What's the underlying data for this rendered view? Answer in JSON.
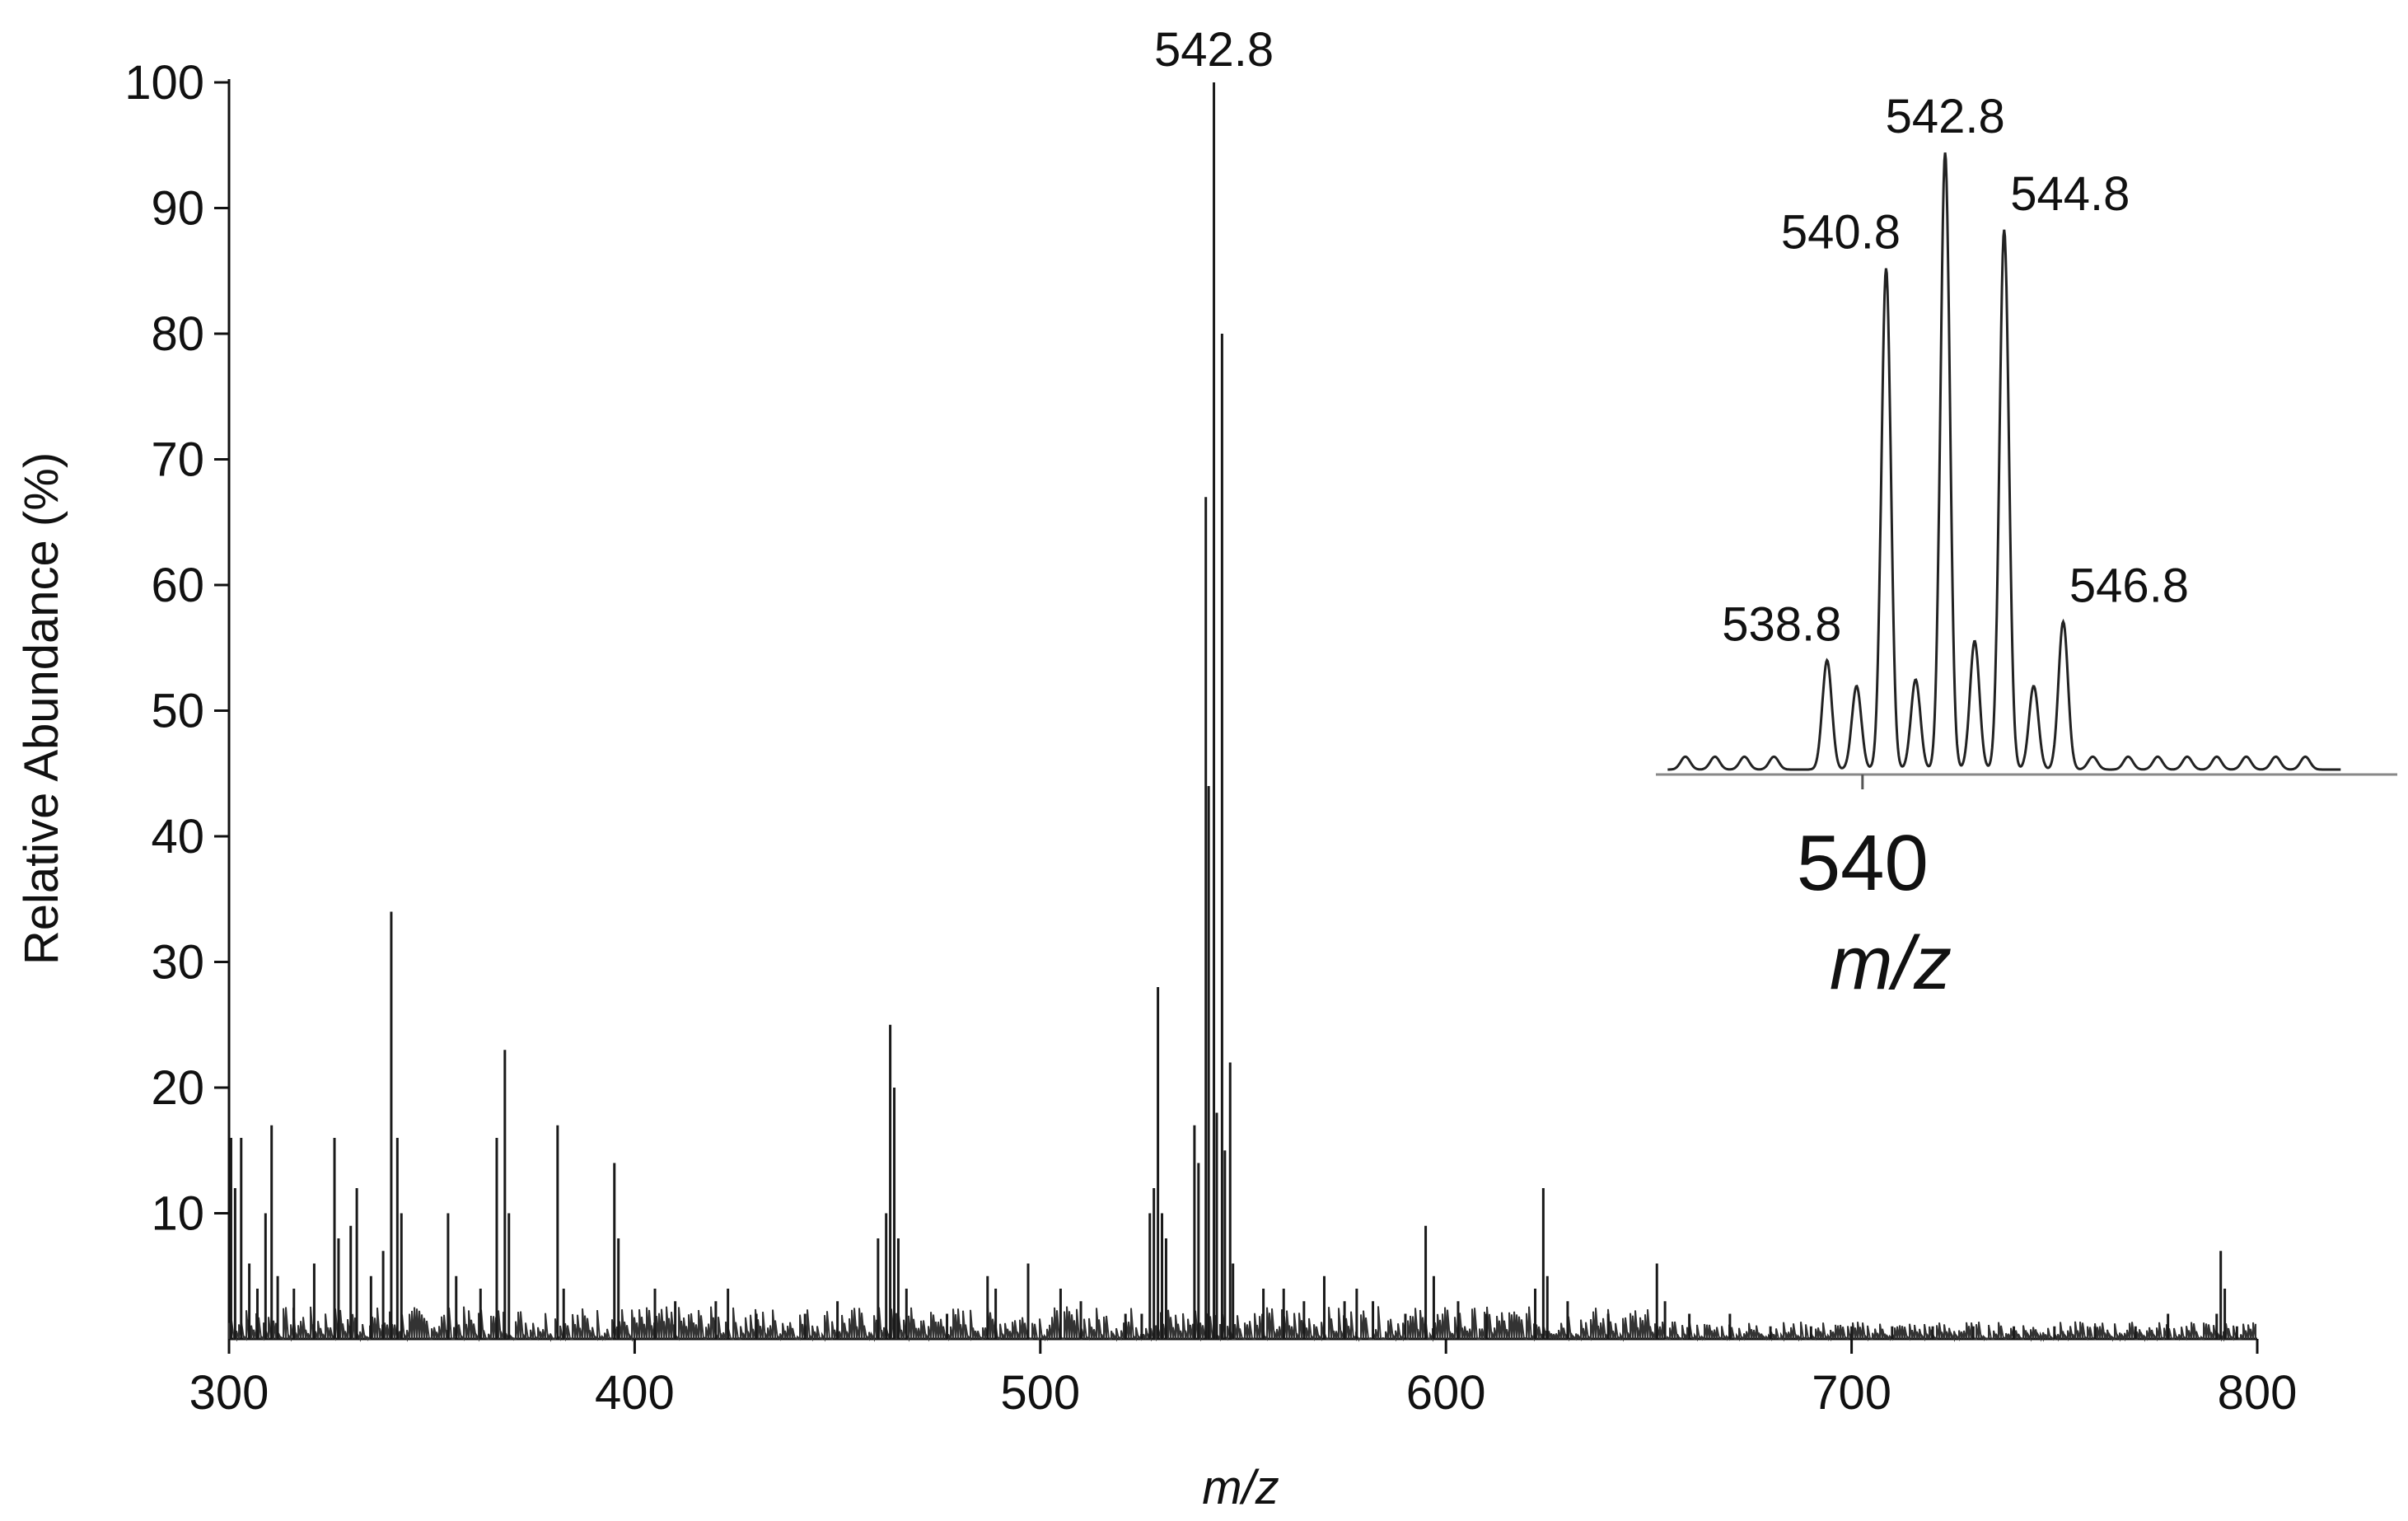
{
  "chart_data": [
    {
      "type": "line",
      "subtype": "mass-spectrum",
      "title": "",
      "xlabel": "m/z",
      "ylabel": "Relative Abundance (%)",
      "xlim": [
        300,
        800
      ],
      "ylim": [
        0,
        100
      ],
      "x_ticks": [
        300,
        400,
        500,
        600,
        700,
        800
      ],
      "y_ticks": [
        10,
        20,
        30,
        40,
        50,
        60,
        70,
        80,
        90,
        100
      ],
      "grid": false,
      "legend": "none",
      "series": [
        {
          "style": "stick",
          "x": [
            300.5,
            301.5,
            303,
            305,
            307,
            309,
            310.5,
            312,
            316,
            321,
            326,
            327,
            330,
            331.5,
            335,
            338,
            340,
            341.5,
            342.5,
            354,
            356,
            362,
            366,
            368,
            369,
            381,
            382.5,
            395,
            396,
            405,
            410,
            420,
            423,
            430,
            442,
            450,
            460,
            462,
            463,
            464,
            465,
            467,
            477,
            487,
            489,
            497,
            505,
            510,
            521,
            525,
            527,
            528,
            529,
            530,
            531,
            538,
            539,
            540.8,
            541.5,
            542.8,
            543.5,
            544.8,
            545.5,
            546.8,
            547.5,
            555,
            560,
            565,
            570,
            575,
            578,
            582,
            590,
            595,
            597,
            603,
            610,
            622,
            624,
            625,
            630,
            640,
            652,
            654,
            660,
            670,
            680,
            690,
            700,
            710,
            720,
            730,
            740,
            750,
            760,
            770,
            778,
            790,
            791,
            792,
            795
          ],
          "y": [
            16,
            12,
            16,
            6,
            4,
            10,
            17,
            5,
            4,
            6,
            16,
            8,
            9,
            12,
            5,
            7,
            34,
            16,
            10,
            10,
            5,
            4,
            16,
            23,
            10,
            17,
            4,
            14,
            8,
            4,
            3,
            3,
            4,
            2,
            2,
            3,
            8,
            10,
            25,
            20,
            8,
            4,
            2,
            5,
            4,
            6,
            4,
            3,
            2,
            2,
            10,
            12,
            28,
            10,
            8,
            17,
            14,
            67,
            44,
            100,
            18,
            80,
            15,
            22,
            6,
            4,
            4,
            3,
            5,
            3,
            4,
            3,
            2,
            9,
            5,
            3,
            2,
            4,
            12,
            5,
            3,
            2,
            6,
            3,
            2,
            2,
            1,
            1,
            1,
            1,
            1,
            1,
            1,
            1,
            1,
            1,
            2,
            2,
            7,
            4,
            1
          ]
        }
      ],
      "annotations": [
        {
          "text": "542.8",
          "x": 542.8,
          "y": 100
        }
      ]
    },
    {
      "type": "line",
      "subtype": "mass-spectrum-inset",
      "title": "",
      "xlabel": "m/z",
      "ylabel": "",
      "xlim": [
        533,
        557
      ],
      "ylim": [
        0,
        100
      ],
      "x_ticks": [
        540
      ],
      "grid": false,
      "legend": "none",
      "series": [
        {
          "style": "profile",
          "x": [
            538.8,
            539.8,
            540.8,
            541.8,
            542.8,
            543.8,
            544.8,
            545.8,
            546.8,
            547.8,
            549.0,
            550.0,
            551.0,
            552.0,
            553.0,
            554.0,
            555.0,
            536.0,
            535.0,
            534.0,
            537.0
          ],
          "y": [
            17,
            13,
            78,
            14,
            96,
            20,
            84,
            13,
            23,
            2,
            2,
            2,
            2,
            2,
            2,
            2,
            2,
            2,
            2,
            2,
            2
          ]
        }
      ],
      "annotations": [
        {
          "text": "538.8",
          "x": 538.8,
          "y": 17
        },
        {
          "text": "540.8",
          "x": 540.8,
          "y": 78
        },
        {
          "text": "542.8",
          "x": 542.8,
          "y": 96
        },
        {
          "text": "544.8",
          "x": 544.8,
          "y": 84
        },
        {
          "text": "546.8",
          "x": 546.8,
          "y": 23
        }
      ]
    }
  ]
}
